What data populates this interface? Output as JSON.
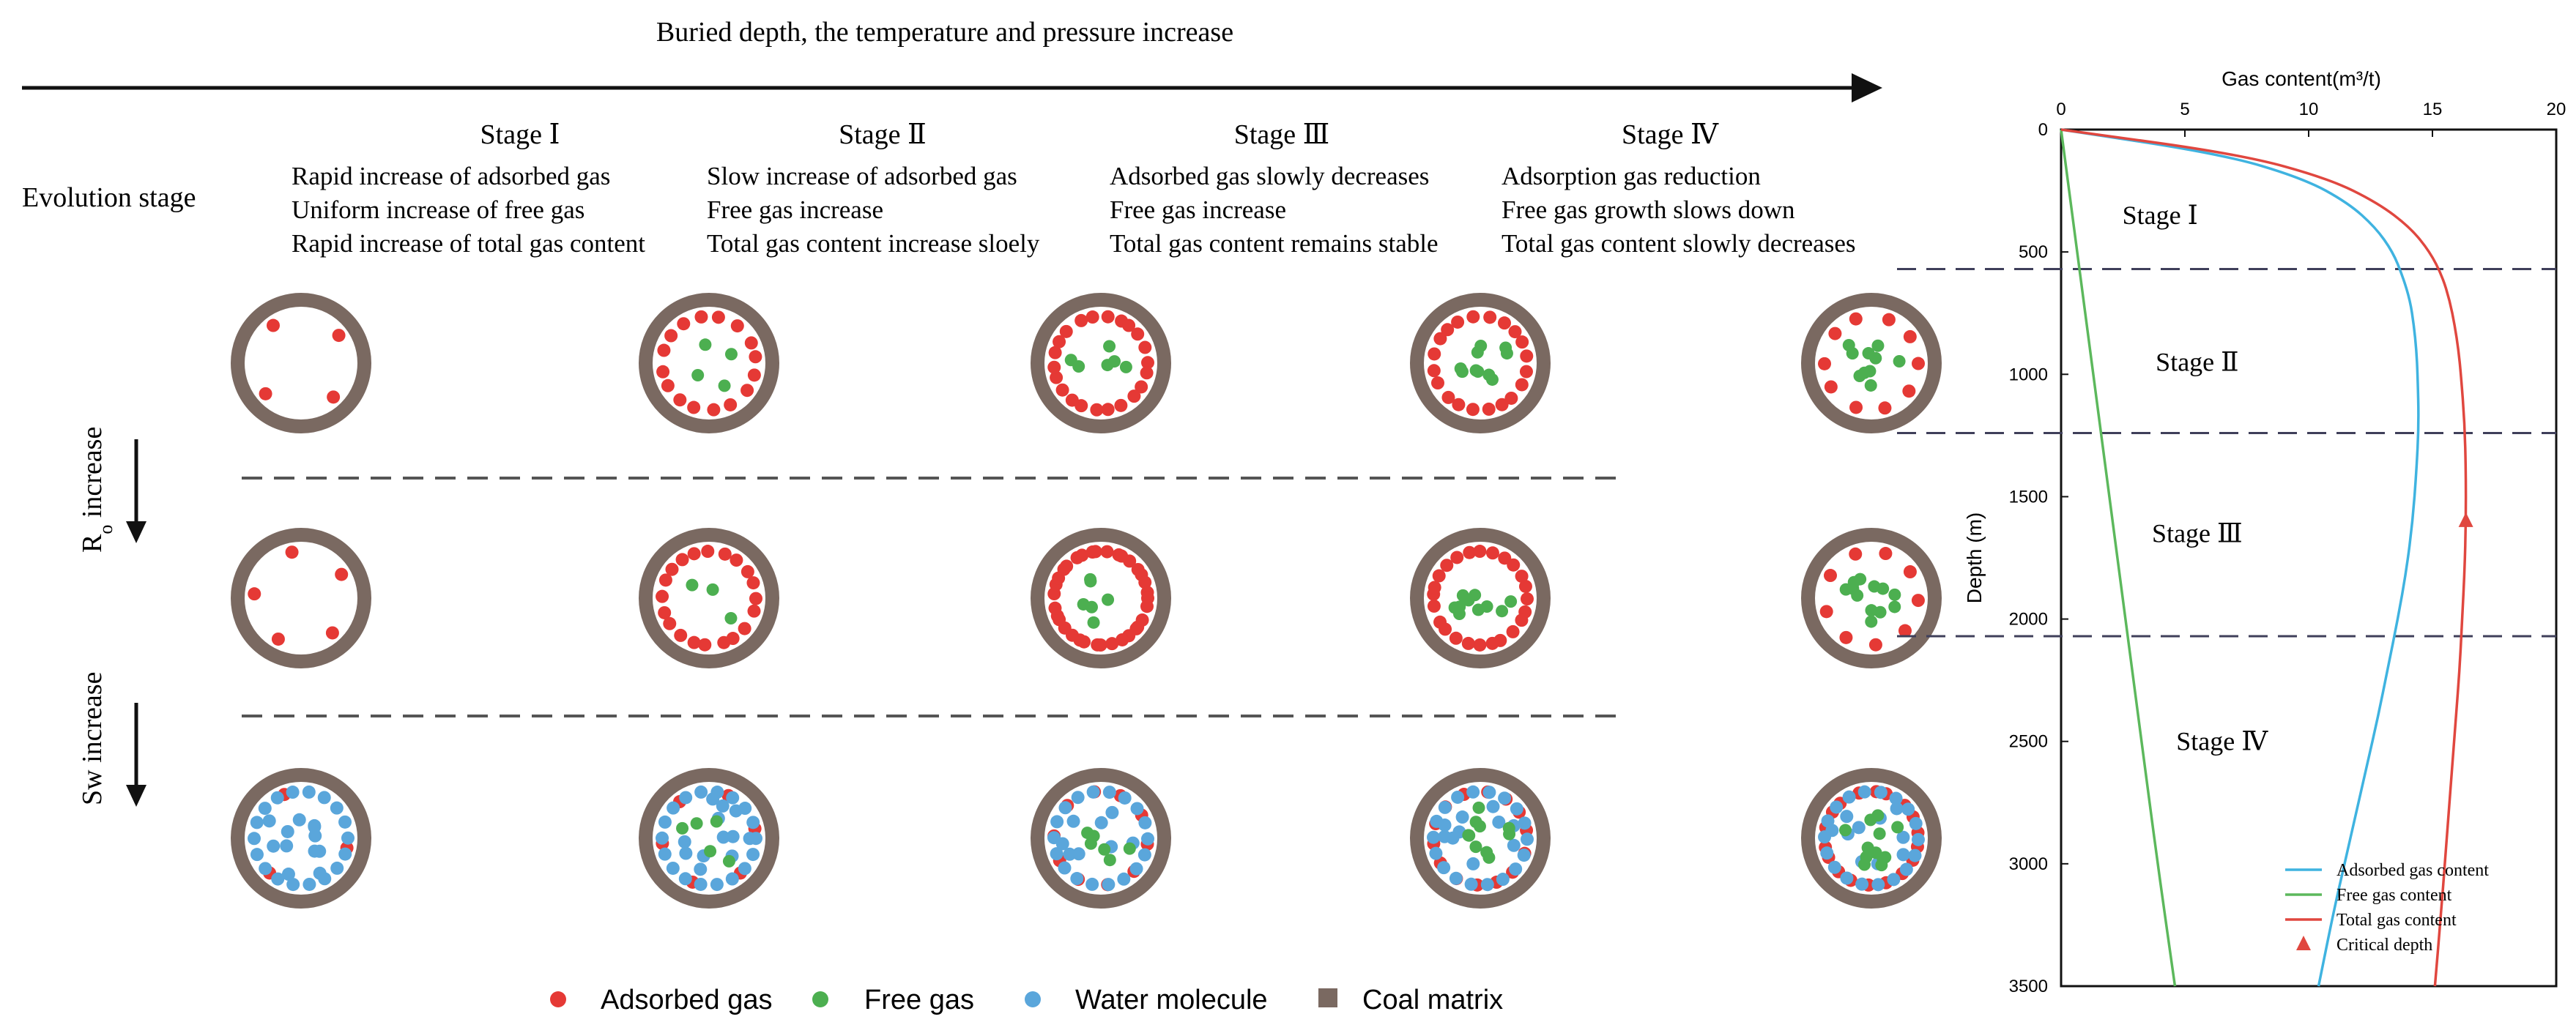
{
  "header": {
    "arrow_label": "Buried depth, the temperature and pressure increase",
    "evolution_stage_label": "Evolution stage",
    "ro_label_main": "R",
    "ro_label_sub": "o",
    "ro_label_rest": " increase",
    "sw_label": "Sw increase"
  },
  "stages": [
    {
      "title": "Stage Ⅰ",
      "lines": [
        "Rapid increase of adsorbed gas",
        "Uniform increase of free gas",
        "Rapid increase of total gas content"
      ]
    },
    {
      "title": "Stage Ⅱ",
      "lines": [
        "Slow increase of adsorbed gas",
        "Free gas increase",
        "Total gas content increase sloely"
      ]
    },
    {
      "title": "Stage Ⅲ",
      "lines": [
        "Adsorbed gas  slowly decreases",
        "Free gas increase",
        "Total gas content remains stable"
      ]
    },
    {
      "title": "Stage Ⅳ",
      "lines": [
        "Adsorption gas reduction",
        "Free gas growth slows down",
        "Total gas content slowly decreases"
      ]
    }
  ],
  "legend": {
    "adsorbed": "Adsorbed gas",
    "free": "Free gas",
    "water": "Water molecule",
    "matrix": "Coal matrix"
  },
  "colors": {
    "adsorbed": "#e53935",
    "free": "#4caf50",
    "water": "#5aa6db",
    "matrix": "#7a6961",
    "adsorbed_line": "#3fb3e0",
    "free_line": "#5cb85c",
    "total_line": "#e0473f",
    "dash": "#3f3f5a"
  },
  "pore_rows": [
    [
      {
        "adsorbed": 4,
        "free": 0,
        "water": 0
      },
      {
        "adsorbed": 16,
        "free": 4,
        "water": 0
      },
      {
        "adsorbed": 22,
        "free": 6,
        "water": 0
      },
      {
        "adsorbed": 20,
        "free": 10,
        "water": 0
      },
      {
        "adsorbed": 10,
        "free": 10,
        "water": 0
      }
    ],
    [
      {
        "adsorbed": 5,
        "free": 0,
        "water": 0
      },
      {
        "adsorbed": 20,
        "free": 3,
        "water": 0
      },
      {
        "adsorbed": 34,
        "free": 6,
        "water": 0
      },
      {
        "adsorbed": 24,
        "free": 10,
        "water": 0
      },
      {
        "adsorbed": 9,
        "free": 12,
        "water": 0
      }
    ],
    [
      {
        "adsorbed": 3,
        "free": 0,
        "water": 24
      },
      {
        "adsorbed": 6,
        "free": 5,
        "water": 24
      },
      {
        "adsorbed": 10,
        "free": 6,
        "water": 20
      },
      {
        "adsorbed": 14,
        "free": 10,
        "water": 22
      },
      {
        "adsorbed": 18,
        "free": 12,
        "water": 22
      }
    ]
  ],
  "chart_data": {
    "type": "line",
    "title": "Gas content(m³/t)",
    "xlabel": "Gas content(m³/t)",
    "ylabel": "Depth (m)",
    "xlim": [
      0,
      20
    ],
    "ylim": [
      0,
      3500
    ],
    "x_ticks": [
      0,
      5,
      10,
      15,
      20
    ],
    "y_ticks": [
      0,
      500,
      1000,
      1500,
      2000,
      2500,
      3000,
      3500
    ],
    "y_inverted": true,
    "series": [
      {
        "name": "Adsorbed gas content",
        "depth": [
          0,
          100,
          200,
          300,
          400,
          500,
          600,
          700,
          800,
          900,
          1000,
          1200,
          1400,
          1600,
          1800,
          2000,
          2200,
          2400,
          2600,
          2800,
          3000,
          3200,
          3500
        ],
        "values": [
          0,
          6.5,
          9.8,
          11.6,
          12.7,
          13.4,
          13.8,
          14.1,
          14.25,
          14.35,
          14.4,
          14.45,
          14.35,
          14.2,
          13.95,
          13.6,
          13.2,
          12.8,
          12.35,
          11.9,
          11.45,
          11.0,
          10.4
        ]
      },
      {
        "name": "Free gas content",
        "depth": [
          0,
          500,
          1000,
          1500,
          2000,
          2500,
          3000,
          3500
        ],
        "values": [
          0,
          0.65,
          1.3,
          1.95,
          2.6,
          3.25,
          3.9,
          4.6
        ]
      },
      {
        "name": "Total gas content",
        "depth": [
          0,
          100,
          200,
          300,
          400,
          500,
          600,
          700,
          800,
          900,
          1000,
          1200,
          1400,
          1600,
          1800,
          2000,
          2200,
          2400,
          2600,
          2800,
          3000,
          3200,
          3500
        ],
        "values": [
          0,
          7.2,
          10.8,
          12.8,
          14.1,
          14.9,
          15.4,
          15.7,
          15.9,
          16.05,
          16.15,
          16.3,
          16.35,
          16.35,
          16.3,
          16.2,
          16.1,
          15.95,
          15.8,
          15.65,
          15.5,
          15.35,
          15.1
        ]
      }
    ],
    "critical_depth": {
      "name": "Critical depth",
      "depth": 1600,
      "value": 16.35
    },
    "stage_boundaries": [
      570,
      1240,
      2070
    ],
    "stage_labels": [
      {
        "label": "Stage Ⅰ",
        "depth": 350,
        "value": 4
      },
      {
        "label": "Stage Ⅱ",
        "depth": 950,
        "value": 5.5
      },
      {
        "label": "Stage Ⅲ",
        "depth": 1650,
        "value": 5.5
      },
      {
        "label": "Stage Ⅳ",
        "depth": 2500,
        "value": 6.5
      }
    ],
    "legend": [
      "Adsorbed gas content",
      "Free gas content",
      "Total gas content",
      "Critical depth"
    ]
  }
}
